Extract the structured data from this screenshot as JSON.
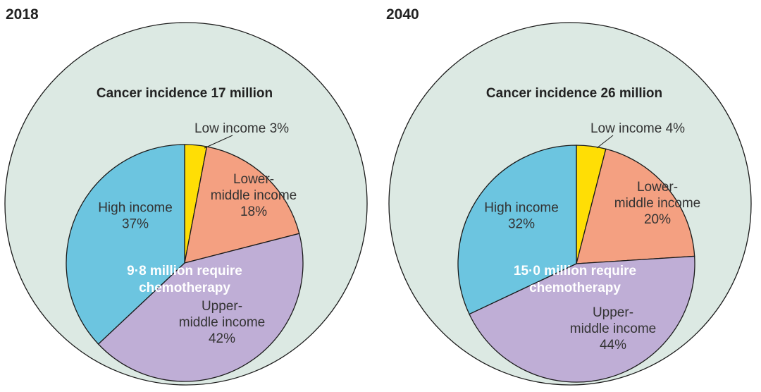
{
  "colors": {
    "outer_circle": "#dce9e3",
    "Low income": "#ffde05",
    "Lower-middle income": "#f4a081",
    "Upper-middle income": "#bfaed6",
    "High income": "#6cc5e0"
  },
  "chart_data": [
    {
      "type": "pie",
      "year": "2018",
      "title": "Cancer incidence 17 million",
      "center_text": [
        "9·8 million require",
        "chemotherapy"
      ],
      "categories": [
        "Low income",
        "Lower-middle income",
        "Upper-middle income",
        "High income"
      ],
      "values": [
        3,
        18,
        42,
        37
      ],
      "slice_labels": [
        [
          "Low income 3%"
        ],
        [
          "Lower-",
          "middle income",
          "18%"
        ],
        [
          "Upper-",
          "middle income",
          "42%"
        ],
        [
          "High income",
          "37%"
        ]
      ]
    },
    {
      "type": "pie",
      "year": "2040",
      "title": "Cancer incidence 26 million",
      "center_text": [
        "15·0 million require",
        "chemotherapy"
      ],
      "categories": [
        "Low income",
        "Lower-middle income",
        "Upper-middle income",
        "High income"
      ],
      "values": [
        4,
        20,
        44,
        32
      ],
      "slice_labels": [
        [
          "Low income 4%"
        ],
        [
          "Lower-",
          "middle income",
          "20%"
        ],
        [
          "Upper-",
          "middle income",
          "44%"
        ],
        [
          "High income",
          "32%"
        ]
      ]
    }
  ]
}
